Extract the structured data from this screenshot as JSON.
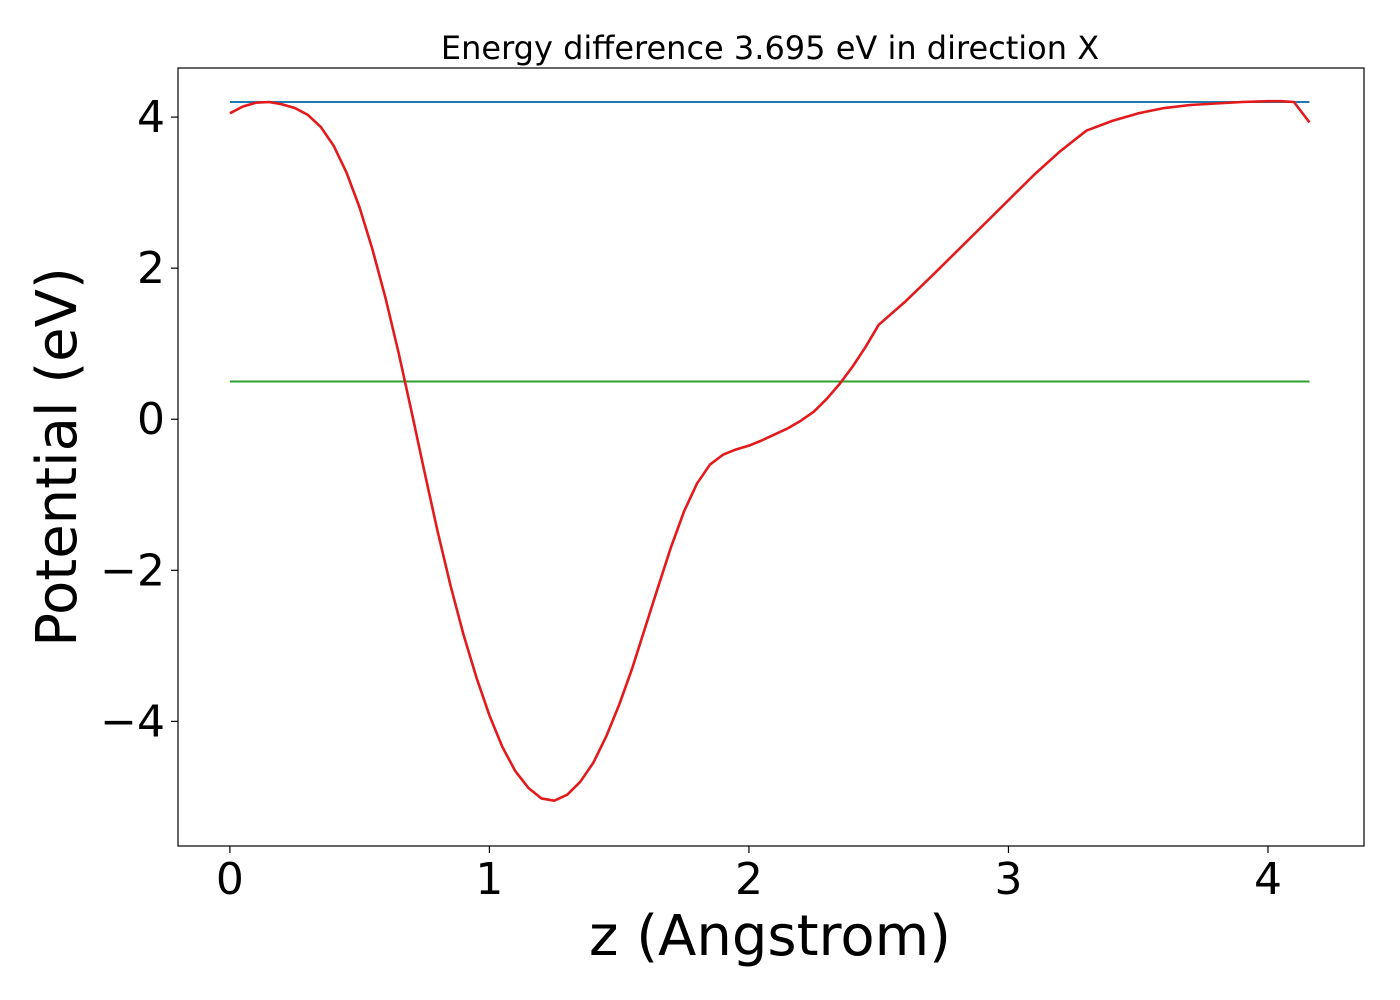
{
  "chart_data": {
    "type": "line",
    "title": "Energy difference 3.695 eV in direction X",
    "xlabel": "z (Angstrom)",
    "ylabel": "Potential (eV)",
    "xlim": [
      -0.2,
      4.37
    ],
    "ylim": [
      -5.65,
      4.65
    ],
    "xticks": [
      0,
      1,
      2,
      3,
      4
    ],
    "xtick_labels": [
      "0",
      "1",
      "2",
      "3",
      "4"
    ],
    "yticks": [
      -4,
      -2,
      0,
      2,
      4
    ],
    "ytick_labels": [
      "−4",
      "−2",
      "0",
      "2",
      "4"
    ],
    "grid": false,
    "series": [
      {
        "color": "#1f77b4",
        "x": [
          0,
          4.16
        ],
        "y": [
          4.2,
          4.2
        ]
      },
      {
        "color": "#2ca02c",
        "x": [
          0,
          4.16
        ],
        "y": [
          0.5,
          0.5
        ]
      },
      {
        "color": "#e31a1c",
        "x": [
          0,
          0.05,
          0.1,
          0.15,
          0.2,
          0.25,
          0.3,
          0.35,
          0.4,
          0.45,
          0.5,
          0.55,
          0.6,
          0.65,
          0.7,
          0.75,
          0.8,
          0.85,
          0.9,
          0.95,
          1.0,
          1.05,
          1.1,
          1.15,
          1.2,
          1.25,
          1.3,
          1.35,
          1.4,
          1.45,
          1.5,
          1.55,
          1.6,
          1.65,
          1.7,
          1.75,
          1.8,
          1.85,
          1.9,
          1.95,
          2.0,
          2.05,
          2.1,
          2.15,
          2.2,
          2.25,
          2.3,
          2.35,
          2.4,
          2.45,
          2.5,
          2.6,
          2.7,
          2.8,
          2.9,
          3.0,
          3.1,
          3.2,
          3.3,
          3.4,
          3.5,
          3.6,
          3.7,
          3.8,
          3.9,
          4.0,
          4.05,
          4.1,
          4.16
        ],
        "y": [
          4.05,
          4.14,
          4.19,
          4.2,
          4.17,
          4.12,
          4.03,
          3.87,
          3.62,
          3.26,
          2.8,
          2.24,
          1.6,
          0.88,
          0.1,
          -0.7,
          -1.48,
          -2.2,
          -2.85,
          -3.42,
          -3.92,
          -4.34,
          -4.66,
          -4.88,
          -5.02,
          -5.05,
          -4.97,
          -4.8,
          -4.55,
          -4.2,
          -3.78,
          -3.3,
          -2.76,
          -2.22,
          -1.69,
          -1.22,
          -0.85,
          -0.6,
          -0.47,
          -0.4,
          -0.35,
          -0.28,
          -0.2,
          -0.12,
          -0.02,
          0.1,
          0.27,
          0.47,
          0.7,
          0.96,
          1.25,
          1.55,
          1.88,
          2.22,
          2.56,
          2.9,
          3.24,
          3.55,
          3.82,
          3.95,
          4.05,
          4.12,
          4.16,
          4.18,
          4.2,
          4.21,
          4.21,
          4.2,
          3.93
        ]
      }
    ]
  }
}
